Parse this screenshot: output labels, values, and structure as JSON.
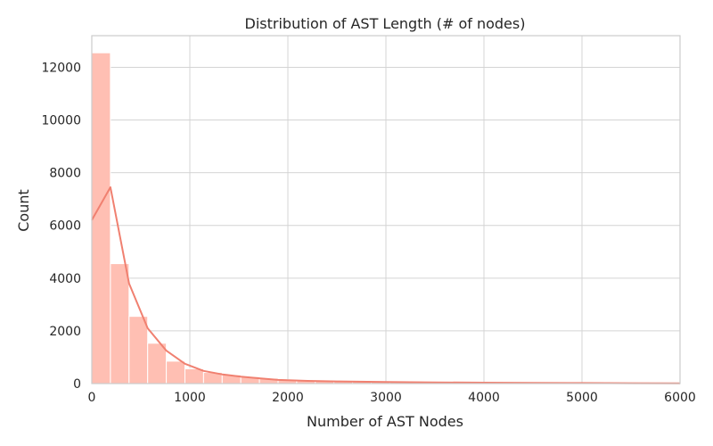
{
  "chart_data": {
    "type": "bar",
    "title": "Distribution of AST Length (# of nodes)",
    "xlabel": "Number of AST Nodes",
    "ylabel": "Count",
    "xlim": [
      0,
      6000
    ],
    "ylim": [
      0,
      13200
    ],
    "xticks": [
      0,
      1000,
      2000,
      3000,
      4000,
      5000,
      6000
    ],
    "yticks": [
      0,
      2000,
      4000,
      6000,
      8000,
      10000,
      12000
    ],
    "grid": true,
    "bar_color": "#ffbfb3",
    "kde_color": "#f08070",
    "bin_width": 190,
    "bins": [
      {
        "x0": 0,
        "x1": 190,
        "count": 12550
      },
      {
        "x0": 190,
        "x1": 380,
        "count": 4550
      },
      {
        "x0": 380,
        "x1": 570,
        "count": 2550
      },
      {
        "x0": 570,
        "x1": 760,
        "count": 1530
      },
      {
        "x0": 760,
        "x1": 950,
        "count": 850
      },
      {
        "x0": 950,
        "x1": 1140,
        "count": 560
      },
      {
        "x0": 1140,
        "x1": 1330,
        "count": 420
      },
      {
        "x0": 1330,
        "x1": 1520,
        "count": 330
      },
      {
        "x0": 1520,
        "x1": 1710,
        "count": 260
      },
      {
        "x0": 1710,
        "x1": 1900,
        "count": 200
      },
      {
        "x0": 1900,
        "x1": 2090,
        "count": 150
      },
      {
        "x0": 2090,
        "x1": 2280,
        "count": 120
      },
      {
        "x0": 2280,
        "x1": 2470,
        "count": 100
      },
      {
        "x0": 2470,
        "x1": 2660,
        "count": 90
      },
      {
        "x0": 2660,
        "x1": 2850,
        "count": 80
      },
      {
        "x0": 2850,
        "x1": 3040,
        "count": 70
      },
      {
        "x0": 3040,
        "x1": 3230,
        "count": 60
      },
      {
        "x0": 3230,
        "x1": 3420,
        "count": 55
      },
      {
        "x0": 3420,
        "x1": 3610,
        "count": 50
      },
      {
        "x0": 3610,
        "x1": 3800,
        "count": 45
      },
      {
        "x0": 3800,
        "x1": 3990,
        "count": 40
      },
      {
        "x0": 3990,
        "x1": 4180,
        "count": 38
      },
      {
        "x0": 4180,
        "x1": 4370,
        "count": 35
      },
      {
        "x0": 4370,
        "x1": 4560,
        "count": 30
      },
      {
        "x0": 4560,
        "x1": 4750,
        "count": 28
      },
      {
        "x0": 4750,
        "x1": 4940,
        "count": 25
      },
      {
        "x0": 4940,
        "x1": 5130,
        "count": 22
      },
      {
        "x0": 5130,
        "x1": 5320,
        "count": 20
      },
      {
        "x0": 5320,
        "x1": 5510,
        "count": 18
      },
      {
        "x0": 5510,
        "x1": 5700,
        "count": 16
      },
      {
        "x0": 5700,
        "x1": 5890,
        "count": 15
      },
      {
        "x0": 5890,
        "x1": 6000,
        "count": 14
      }
    ],
    "kde_line": {
      "x": [
        0,
        190,
        380,
        570,
        760,
        950,
        1140,
        1330,
        1520,
        1710,
        1900,
        2200,
        2500,
        3000,
        3500,
        4000,
        4500,
        5000,
        5500,
        6000
      ],
      "y": [
        6200,
        7450,
        3800,
        2100,
        1250,
        750,
        480,
        350,
        260,
        200,
        140,
        100,
        80,
        60,
        45,
        35,
        28,
        20,
        15,
        10
      ]
    }
  }
}
